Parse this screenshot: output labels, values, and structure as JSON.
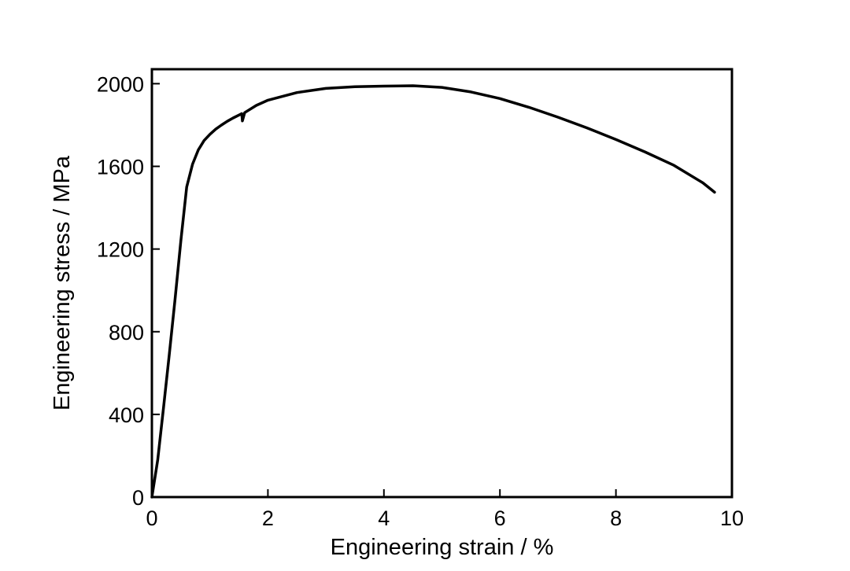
{
  "chart_data": {
    "type": "line",
    "title": "",
    "xlabel": "Engineering strain / %",
    "ylabel": "Engineering stress / MPa",
    "xlim": [
      0,
      10
    ],
    "ylim": [
      0,
      2070
    ],
    "x_ticks": [
      0,
      2,
      4,
      6,
      8,
      10
    ],
    "x_tick_labels": [
      "0",
      "2",
      "4",
      "6",
      "8",
      "10"
    ],
    "y_ticks": [
      0,
      400,
      800,
      1200,
      1600,
      2000
    ],
    "y_tick_labels": [
      "0",
      "400",
      "800",
      "1200",
      "1600",
      "2000"
    ],
    "grid": false,
    "legend": "none",
    "line_color": "#000000",
    "series": [
      {
        "x": [
          0,
          0.1,
          0.2,
          0.3,
          0.4,
          0.5,
          0.6,
          0.7,
          0.8,
          0.9,
          1.0,
          1.1,
          1.2,
          1.3,
          1.4,
          1.5,
          1.55,
          1.56,
          1.6,
          1.8,
          2.0,
          2.5,
          3.0,
          3.5,
          4.0,
          4.5,
          5.0,
          5.5,
          6.0,
          6.5,
          7.0,
          7.5,
          8.0,
          8.5,
          9.0,
          9.5,
          9.7
        ],
        "y": [
          0,
          180,
          430,
          690,
          960,
          1240,
          1500,
          1610,
          1680,
          1725,
          1755,
          1780,
          1800,
          1818,
          1834,
          1848,
          1855,
          1820,
          1860,
          1895,
          1920,
          1957,
          1977,
          1985,
          1988,
          1990,
          1982,
          1960,
          1928,
          1886,
          1838,
          1786,
          1730,
          1670,
          1605,
          1520,
          1475
        ]
      }
    ]
  }
}
